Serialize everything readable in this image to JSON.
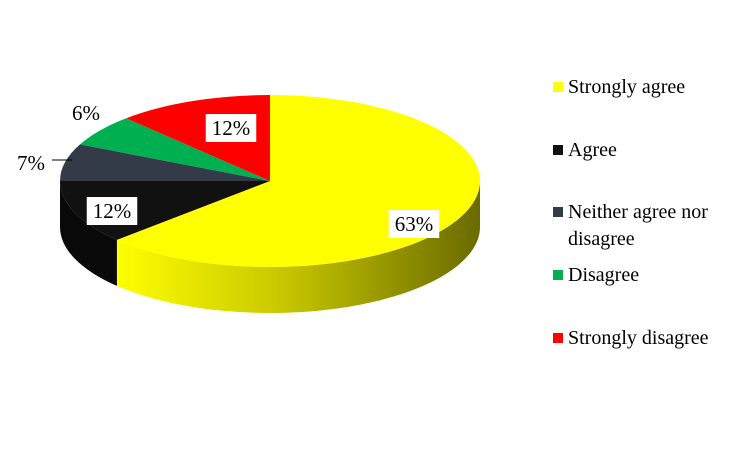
{
  "chart_data": {
    "type": "pie",
    "title": "",
    "three_d": true,
    "legend_position": "right",
    "slices": [
      {
        "name": "Strongly agree",
        "value": 63,
        "label": "63%",
        "color": "#ffff00"
      },
      {
        "name": "Agree",
        "value": 12,
        "label": "12%",
        "color": "#111111"
      },
      {
        "name": "Neither agree nor disagree",
        "legend_lines": [
          "Neither agree nor",
          "disagree"
        ],
        "value": 7,
        "label": "7%",
        "color": "#333b48"
      },
      {
        "name": "Disagree",
        "value": 6,
        "label": "6%",
        "color": "#00b050"
      },
      {
        "name": "Strongly disagree",
        "value": 12,
        "label": "12%",
        "color": "#ff0000"
      }
    ]
  }
}
